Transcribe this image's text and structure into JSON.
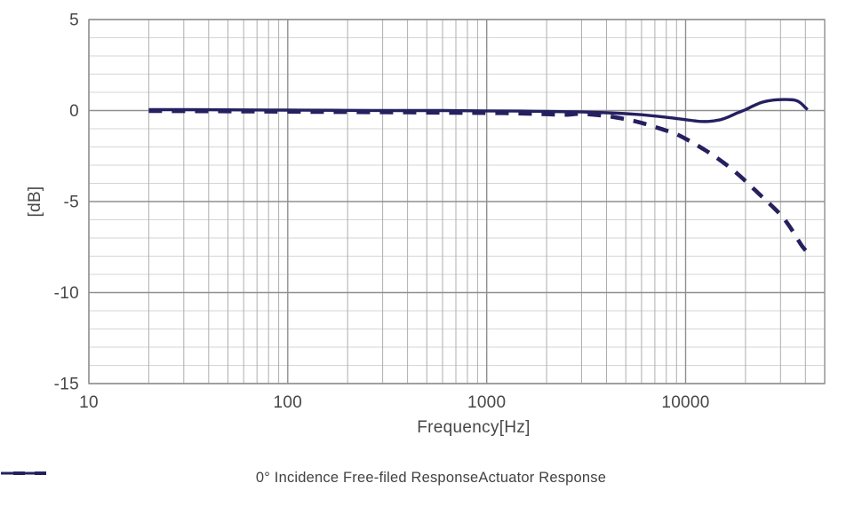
{
  "chart_data": {
    "type": "line",
    "title": "",
    "xlabel": "Frequency[Hz]",
    "ylabel": "[dB]",
    "x_scale": "log",
    "xlim": [
      10,
      50000
    ],
    "ylim": [
      -15,
      5
    ],
    "x_ticks": [
      "10",
      "100",
      "1000",
      "10000"
    ],
    "y_ticks": [
      "5",
      "0",
      "-5",
      "-10",
      "-15"
    ],
    "grid": "on",
    "legend_position": "bottom",
    "line_color": "#252060",
    "series": [
      {
        "name": "0° Incidence Free-filed Response",
        "style": "solid",
        "points": [
          [
            20,
            0.05
          ],
          [
            30,
            0.05
          ],
          [
            50,
            0.04
          ],
          [
            80,
            0.03
          ],
          [
            120,
            0.02
          ],
          [
            200,
            0.01
          ],
          [
            350,
            0
          ],
          [
            600,
            0
          ],
          [
            1000,
            -0.02
          ],
          [
            1500,
            -0.03
          ],
          [
            2000,
            -0.05
          ],
          [
            3000,
            -0.08
          ],
          [
            4000,
            -0.12
          ],
          [
            5000,
            -0.17
          ],
          [
            6000,
            -0.23
          ],
          [
            7000,
            -0.3
          ],
          [
            8000,
            -0.37
          ],
          [
            9000,
            -0.44
          ],
          [
            10000,
            -0.5
          ],
          [
            11000,
            -0.56
          ],
          [
            12000,
            -0.6
          ],
          [
            13000,
            -0.6
          ],
          [
            14000,
            -0.56
          ],
          [
            15000,
            -0.5
          ],
          [
            16000,
            -0.4
          ],
          [
            17000,
            -0.28
          ],
          [
            18000,
            -0.15
          ],
          [
            19000,
            -0.05
          ],
          [
            20000,
            0.05
          ],
          [
            21000,
            0.16
          ],
          [
            22000,
            0.27
          ],
          [
            24000,
            0.44
          ],
          [
            26000,
            0.53
          ],
          [
            28000,
            0.58
          ],
          [
            30000,
            0.6
          ],
          [
            33000,
            0.6
          ],
          [
            35000,
            0.58
          ],
          [
            36500,
            0.52
          ],
          [
            38000,
            0.4
          ],
          [
            39500,
            0.22
          ],
          [
            41000,
            0.05
          ]
        ]
      },
      {
        "name": "Actuator Response",
        "style": "dashed",
        "points": [
          [
            20,
            -0.02
          ],
          [
            50,
            -0.04
          ],
          [
            100,
            -0.06
          ],
          [
            200,
            -0.08
          ],
          [
            400,
            -0.1
          ],
          [
            700,
            -0.12
          ],
          [
            1000,
            -0.13
          ],
          [
            1500,
            -0.16
          ],
          [
            2000,
            -0.2
          ],
          [
            2500,
            -0.23
          ],
          [
            3000,
            -0.18
          ],
          [
            4000,
            -0.3
          ],
          [
            5000,
            -0.48
          ],
          [
            6000,
            -0.68
          ],
          [
            7000,
            -0.9
          ],
          [
            8000,
            -1.1
          ],
          [
            9000,
            -1.3
          ],
          [
            10000,
            -1.55
          ],
          [
            11000,
            -1.8
          ],
          [
            12000,
            -2.05
          ],
          [
            13500,
            -2.4
          ],
          [
            15000,
            -2.75
          ],
          [
            17000,
            -3.2
          ],
          [
            19000,
            -3.65
          ],
          [
            21000,
            -4.1
          ],
          [
            23000,
            -4.5
          ],
          [
            25000,
            -4.88
          ],
          [
            27000,
            -5.22
          ],
          [
            30000,
            -5.72
          ],
          [
            33000,
            -6.3
          ],
          [
            36000,
            -6.95
          ],
          [
            38500,
            -7.45
          ],
          [
            41000,
            -7.8
          ]
        ]
      }
    ]
  }
}
